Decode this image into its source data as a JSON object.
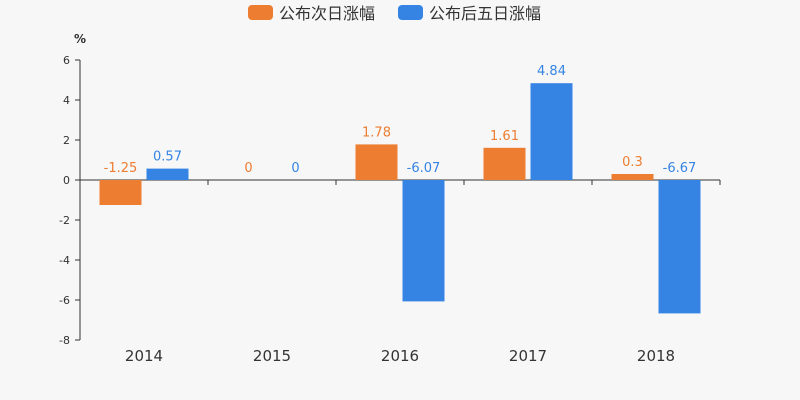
{
  "chart_data": {
    "type": "bar",
    "categories": [
      "2014",
      "2015",
      "2016",
      "2017",
      "2018"
    ],
    "series": [
      {
        "name": "公布次日涨幅",
        "color": "#ed7d31",
        "values": [
          -1.25,
          0,
          1.78,
          1.61,
          0.3
        ],
        "labels": [
          "-1.25",
          "0",
          "1.78",
          "1.61",
          "0.3"
        ]
      },
      {
        "name": "公布后五日涨幅",
        "color": "#3584e4",
        "values": [
          0.57,
          0,
          -6.07,
          4.84,
          -6.67
        ],
        "labels": [
          "0.57",
          "0",
          "-6.07",
          "4.84",
          "-6.67"
        ]
      }
    ],
    "ylabel": "%",
    "ylim": [
      -8,
      6
    ],
    "yticks": [
      6,
      4,
      2,
      0,
      -2,
      -4,
      -6,
      -8
    ],
    "grid": false,
    "legend_position": "top-center"
  }
}
